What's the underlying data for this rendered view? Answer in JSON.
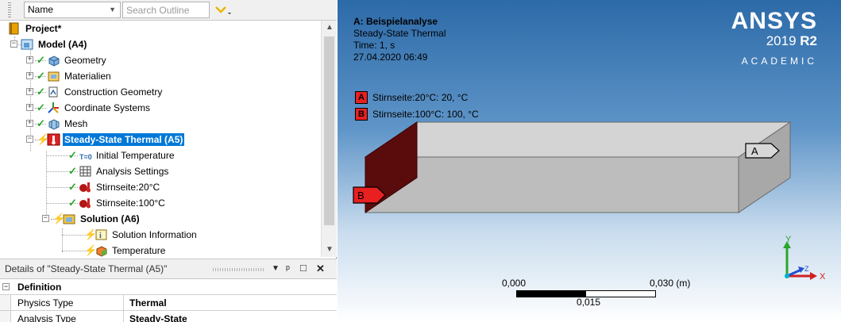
{
  "toolbar": {
    "name_filter": "Name",
    "search_placeholder": "Search Outline"
  },
  "tree": {
    "project": "Project*",
    "model": "Model (A4)",
    "geometry": "Geometry",
    "materials": "Materialien",
    "construction_geometry": "Construction Geometry",
    "coordinate_systems": "Coordinate Systems",
    "mesh": "Mesh",
    "analysis": "Steady-State Thermal (A5)",
    "initial_temperature": "Initial Temperature",
    "initial_temperature_badge": "T=0",
    "analysis_settings": "Analysis Settings",
    "bc1": "Stirnseite:20°C",
    "bc2": "Stirnseite:100°C",
    "solution": "Solution (A6)",
    "solution_information": "Solution Information",
    "temperature": "Temperature"
  },
  "details": {
    "title": "Details of \"Steady-State Thermal (A5)\"",
    "section": "Definition",
    "rows": [
      {
        "label": "Physics Type",
        "value": "Thermal"
      },
      {
        "label": "Analysis Type",
        "value": "Steady-State"
      }
    ]
  },
  "viewport": {
    "title": "A: Beispielanalyse",
    "subtitle": "Steady-State Thermal",
    "time": "Time: 1, s",
    "timestamp": "27.04.2020 06:49",
    "legend": [
      {
        "tag": "A",
        "text": "Stirnseite:20°C: 20, °C",
        "color": "#e82020"
      },
      {
        "tag": "B",
        "text": "Stirnseite:100°C: 100, °C",
        "color": "#e82020"
      }
    ],
    "callout_a": "A",
    "callout_b": "B",
    "brand": {
      "name": "ANSYS",
      "version": "2019",
      "release": "R2",
      "edition": "ACADEMIC"
    },
    "scale": {
      "left": "0,000",
      "right": "0,030 (m)",
      "mid": "0,015"
    },
    "triad": {
      "x": "X",
      "y": "Y",
      "z": "Z"
    }
  }
}
